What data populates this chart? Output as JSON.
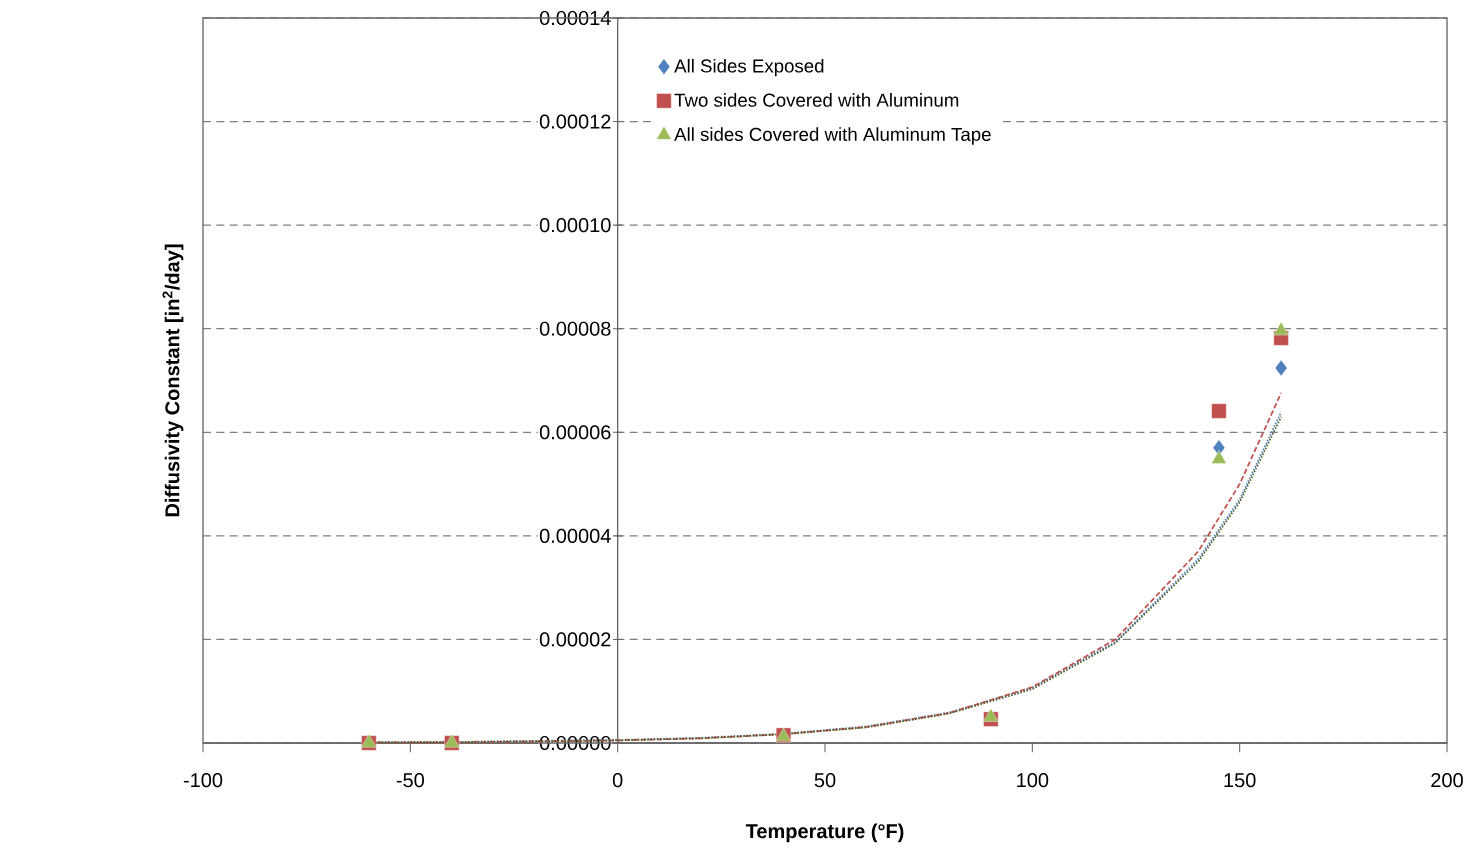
{
  "chart_data": {
    "type": "scatter",
    "xlabel": "Temperature (°F)",
    "ylabel": "Diffusivity Constant  [in$^{2}$/day]",
    "xlim": [
      -100,
      200
    ],
    "xticks": [
      -100,
      -50,
      0,
      50,
      100,
      150,
      200
    ],
    "ylim": [
      0,
      0.00014
    ],
    "yticks": [
      {
        "value": 0,
        "label": "0.00000"
      },
      {
        "value": 2e-05,
        "label": "0.00002"
      },
      {
        "value": 4e-05,
        "label": "0.00004"
      },
      {
        "value": 6e-05,
        "label": "0.00006"
      },
      {
        "value": 8e-05,
        "label": "0.00008"
      },
      {
        "value": 0.0001,
        "label": "0.00010"
      },
      {
        "value": 0.00012,
        "label": "0.00012"
      },
      {
        "value": 0.00014,
        "label": "0.00014"
      }
    ],
    "grid": "y",
    "legend": "top",
    "series": [
      {
        "name": "All Sides Exposed",
        "marker": "diamond",
        "color": "#4f81bd",
        "x": [
          145,
          160
        ],
        "values": [
          5.7e-05,
          7.24e-05
        ]
      },
      {
        "name": "Two sides Covered with Aluminum",
        "marker": "square",
        "color": "#c0504d",
        "x": [
          -60,
          -40,
          40,
          90,
          145,
          160
        ],
        "values": [
          0,
          0,
          1.5e-06,
          4.6e-06,
          6.41e-05,
          7.82e-05
        ]
      },
      {
        "name": "All sides Covered with Aluminum Tape",
        "marker": "triangle",
        "color": "#9bbb59",
        "x": [
          -60,
          -40,
          40,
          90,
          145,
          160
        ],
        "values": [
          0,
          0,
          1.2e-06,
          5e-06,
          5.48e-05,
          7.96e-05
        ]
      },
      {
        "type": "line",
        "line_style": "dotted",
        "color": "#4f81bd",
        "x": [
          -60,
          -40,
          0,
          20,
          40,
          60,
          80,
          100,
          120,
          140,
          150,
          160
        ],
        "values": [
          1e-07,
          2e-07,
          6e-07,
          1e-06,
          1.8e-06,
          3.2e-06,
          5.9e-06,
          1.07e-05,
          1.95e-05,
          3.55e-05,
          4.7e-05,
          6.39e-05
        ]
      },
      {
        "type": "line",
        "line_style": "dashed",
        "color": "#c0504d",
        "x": [
          -60,
          -40,
          0,
          20,
          40,
          60,
          80,
          100,
          120,
          140,
          150,
          160
        ],
        "values": [
          1e-07,
          1e-07,
          5e-07,
          9e-07,
          1.7e-06,
          3.1e-06,
          5.8e-06,
          1.08e-05,
          2e-05,
          3.7e-05,
          5e-05,
          6.76e-05
        ]
      },
      {
        "type": "line",
        "line_style": "dotted",
        "color": "#4f6228",
        "x": [
          -60,
          -40,
          0,
          20,
          40,
          60,
          80,
          100,
          120,
          140,
          150,
          160
        ],
        "values": [
          1e-07,
          2e-07,
          5e-07,
          9e-07,
          1.7e-06,
          3e-06,
          5.7e-06,
          1.04e-05,
          1.93e-05,
          3.5e-05,
          4.65e-05,
          6.3e-05
        ]
      }
    ]
  }
}
